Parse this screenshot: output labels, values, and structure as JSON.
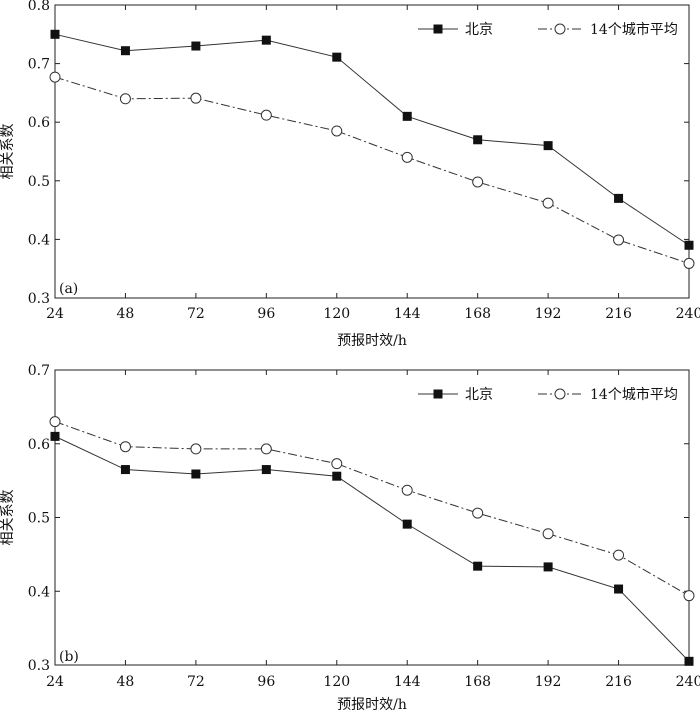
{
  "chart_data": [
    {
      "type": "line",
      "panel_label": "(a)",
      "x": [
        24,
        48,
        72,
        96,
        120,
        144,
        168,
        192,
        216,
        240
      ],
      "xlabel": "预报时效/h",
      "ylabel": "相关系数",
      "xlim": [
        24,
        240
      ],
      "ylim": [
        0.3,
        0.8
      ],
      "yticks": [
        "0.3",
        "0.4",
        "0.5",
        "0.6",
        "0.7",
        "0.8"
      ],
      "grid": false,
      "legend_position": "top-right",
      "series": [
        {
          "name": "北京",
          "marker": "filled-square",
          "line_style": "solid",
          "values": [
            0.75,
            0.722,
            0.73,
            0.74,
            0.711,
            0.61,
            0.57,
            0.56,
            0.47,
            0.39
          ]
        },
        {
          "name": "14个城市平均",
          "marker": "open-circle",
          "line_style": "dash-dot",
          "values": [
            0.677,
            0.64,
            0.641,
            0.612,
            0.585,
            0.54,
            0.498,
            0.462,
            0.399,
            0.359
          ]
        }
      ]
    },
    {
      "type": "line",
      "panel_label": "(b)",
      "x": [
        24,
        48,
        72,
        96,
        120,
        144,
        168,
        192,
        216,
        240
      ],
      "xlabel": "预报时效/h",
      "ylabel": "相关系数",
      "xlim": [
        24,
        240
      ],
      "ylim": [
        0.3,
        0.7
      ],
      "yticks": [
        "0.3",
        "0.4",
        "0.5",
        "0.6",
        "0.7"
      ],
      "grid": false,
      "legend_position": "top-right",
      "series": [
        {
          "name": "北京",
          "marker": "filled-square",
          "line_style": "solid",
          "values": [
            0.61,
            0.565,
            0.559,
            0.565,
            0.556,
            0.491,
            0.434,
            0.433,
            0.403,
            0.305
          ]
        },
        {
          "name": "14个城市平均",
          "marker": "open-circle",
          "line_style": "dash-dot",
          "values": [
            0.63,
            0.596,
            0.593,
            0.593,
            0.573,
            0.537,
            0.506,
            0.478,
            0.449,
            0.394
          ]
        }
      ]
    }
  ]
}
